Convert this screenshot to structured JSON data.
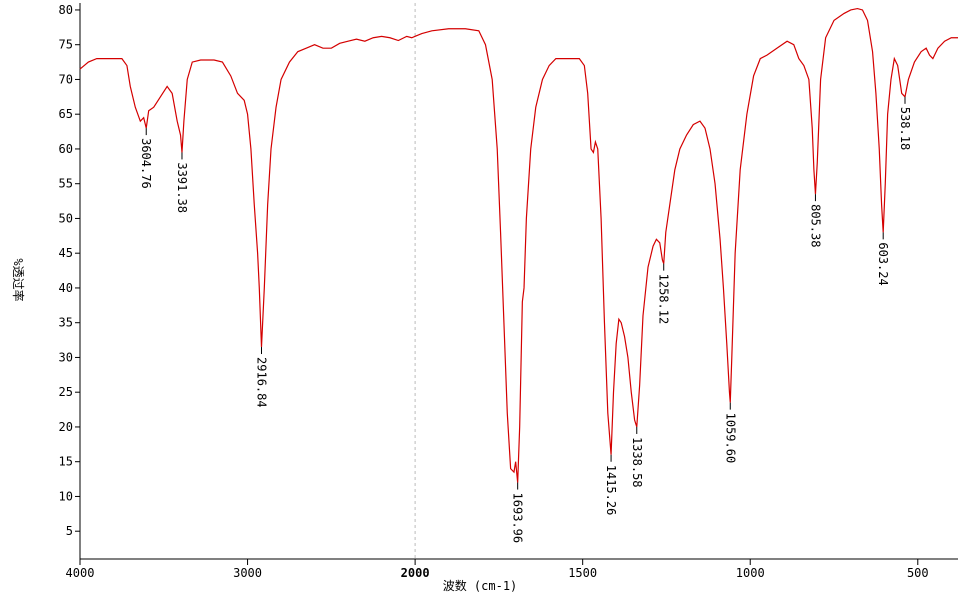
{
  "chart_data": {
    "type": "line",
    "x_label": "波数 (cm-1)",
    "y_label": "%透过率",
    "xlim": [
      4000,
      380
    ],
    "xbreak": 2000,
    "xticks": [
      4000,
      3000,
      2000,
      1500,
      1000,
      500
    ],
    "ylim": [
      1,
      81
    ],
    "yticks": [
      5,
      10,
      15,
      20,
      25,
      30,
      35,
      40,
      45,
      50,
      55,
      60,
      65,
      70,
      75,
      80
    ],
    "grid": false,
    "series": [
      {
        "color": "#d40000",
        "x": [
          4000,
          3950,
          3900,
          3850,
          3800,
          3750,
          3720,
          3700,
          3670,
          3640,
          3620,
          3604.76,
          3590,
          3560,
          3520,
          3480,
          3450,
          3420,
          3400,
          3391.38,
          3380,
          3360,
          3330,
          3280,
          3200,
          3150,
          3100,
          3060,
          3020,
          3000,
          2980,
          2960,
          2940,
          2930,
          2916.84,
          2900,
          2880,
          2860,
          2830,
          2800,
          2750,
          2700,
          2650,
          2600,
          2550,
          2500,
          2450,
          2400,
          2350,
          2300,
          2250,
          2200,
          2150,
          2100,
          2050,
          2020,
          2000,
          1980,
          1950,
          1900,
          1850,
          1810,
          1790,
          1770,
          1755,
          1745,
          1735,
          1725,
          1715,
          1705,
          1700,
          1693.96,
          1688,
          1680,
          1675,
          1668,
          1655,
          1640,
          1620,
          1600,
          1580,
          1540,
          1510,
          1495,
          1485,
          1475,
          1468,
          1462,
          1455,
          1445,
          1435,
          1425,
          1415.26,
          1408,
          1400,
          1392,
          1385,
          1375,
          1365,
          1355,
          1345,
          1338.58,
          1330,
          1320,
          1305,
          1290,
          1280,
          1270,
          1262,
          1258.12,
          1252,
          1240,
          1225,
          1210,
          1190,
          1170,
          1150,
          1135,
          1120,
          1105,
          1090,
          1080,
          1070,
          1062,
          1059.6,
          1055,
          1045,
          1030,
          1010,
          990,
          970,
          950,
          920,
          890,
          870,
          855,
          840,
          825,
          815,
          810,
          805.38,
          800,
          790,
          775,
          750,
          720,
          700,
          680,
          665,
          650,
          635,
          625,
          615,
          608,
          603.24,
          597,
          590,
          580,
          570,
          560,
          548,
          538.18,
          528,
          510,
          490,
          475,
          465,
          455,
          440,
          420,
          400,
          380
        ],
        "values": [
          71.5,
          72.5,
          73,
          73,
          73,
          73,
          72,
          69,
          66,
          64,
          64.5,
          63,
          65.5,
          66,
          67.5,
          69,
          68,
          64,
          62,
          59.5,
          64,
          70,
          72.5,
          72.8,
          72.8,
          72.5,
          70.5,
          68,
          67,
          65,
          60,
          52,
          45,
          40,
          31.5,
          40,
          52,
          60,
          66,
          70,
          72.5,
          74,
          74.5,
          75,
          74.5,
          74.5,
          75.2,
          75.5,
          75.8,
          75.5,
          76,
          76.2,
          76,
          75.6,
          76.2,
          76,
          76.2,
          76.6,
          77,
          77.3,
          77.3,
          77,
          75,
          70,
          60,
          48,
          35,
          22,
          14,
          13.5,
          15,
          12,
          20,
          38,
          40,
          50,
          60,
          66,
          70,
          72,
          73,
          73,
          73,
          72,
          68,
          60,
          59.5,
          61,
          60,
          50,
          35,
          22,
          16,
          25,
          32,
          35.5,
          35,
          33,
          30,
          25,
          21,
          20,
          26,
          36,
          43,
          46,
          47,
          46.5,
          44,
          43.5,
          48,
          52,
          57,
          60,
          62,
          63.5,
          64,
          63,
          60,
          55,
          47,
          40,
          32,
          25,
          23.5,
          30,
          45,
          57,
          65,
          70.5,
          73,
          73.5,
          74.5,
          75.5,
          75,
          73,
          72,
          70,
          63,
          57,
          53.5,
          58,
          70,
          76,
          78.5,
          79.5,
          80,
          80.2,
          80,
          78.5,
          74,
          68,
          60,
          52,
          48,
          55,
          65,
          70,
          73,
          72,
          68,
          67.5,
          70,
          72.5,
          74,
          74.5,
          73.5,
          73,
          74.5,
          75.5,
          76,
          76
        ]
      }
    ],
    "peaks": {
      "x": [
        3604.76,
        3391.38,
        2916.84,
        1693.96,
        1415.26,
        1338.58,
        1258.12,
        1059.6,
        805.38,
        603.24,
        538.18
      ],
      "labels": [
        "3604.76",
        "3391.38",
        "2916.84",
        "1693.96",
        "1415.26",
        "1338.58",
        "1258.12",
        "1059.60",
        "805.38",
        "603.24",
        "538.18"
      ],
      "values": [
        63,
        59.5,
        31.5,
        12,
        16,
        20,
        43.5,
        23.5,
        53.5,
        48,
        67.5
      ]
    }
  }
}
